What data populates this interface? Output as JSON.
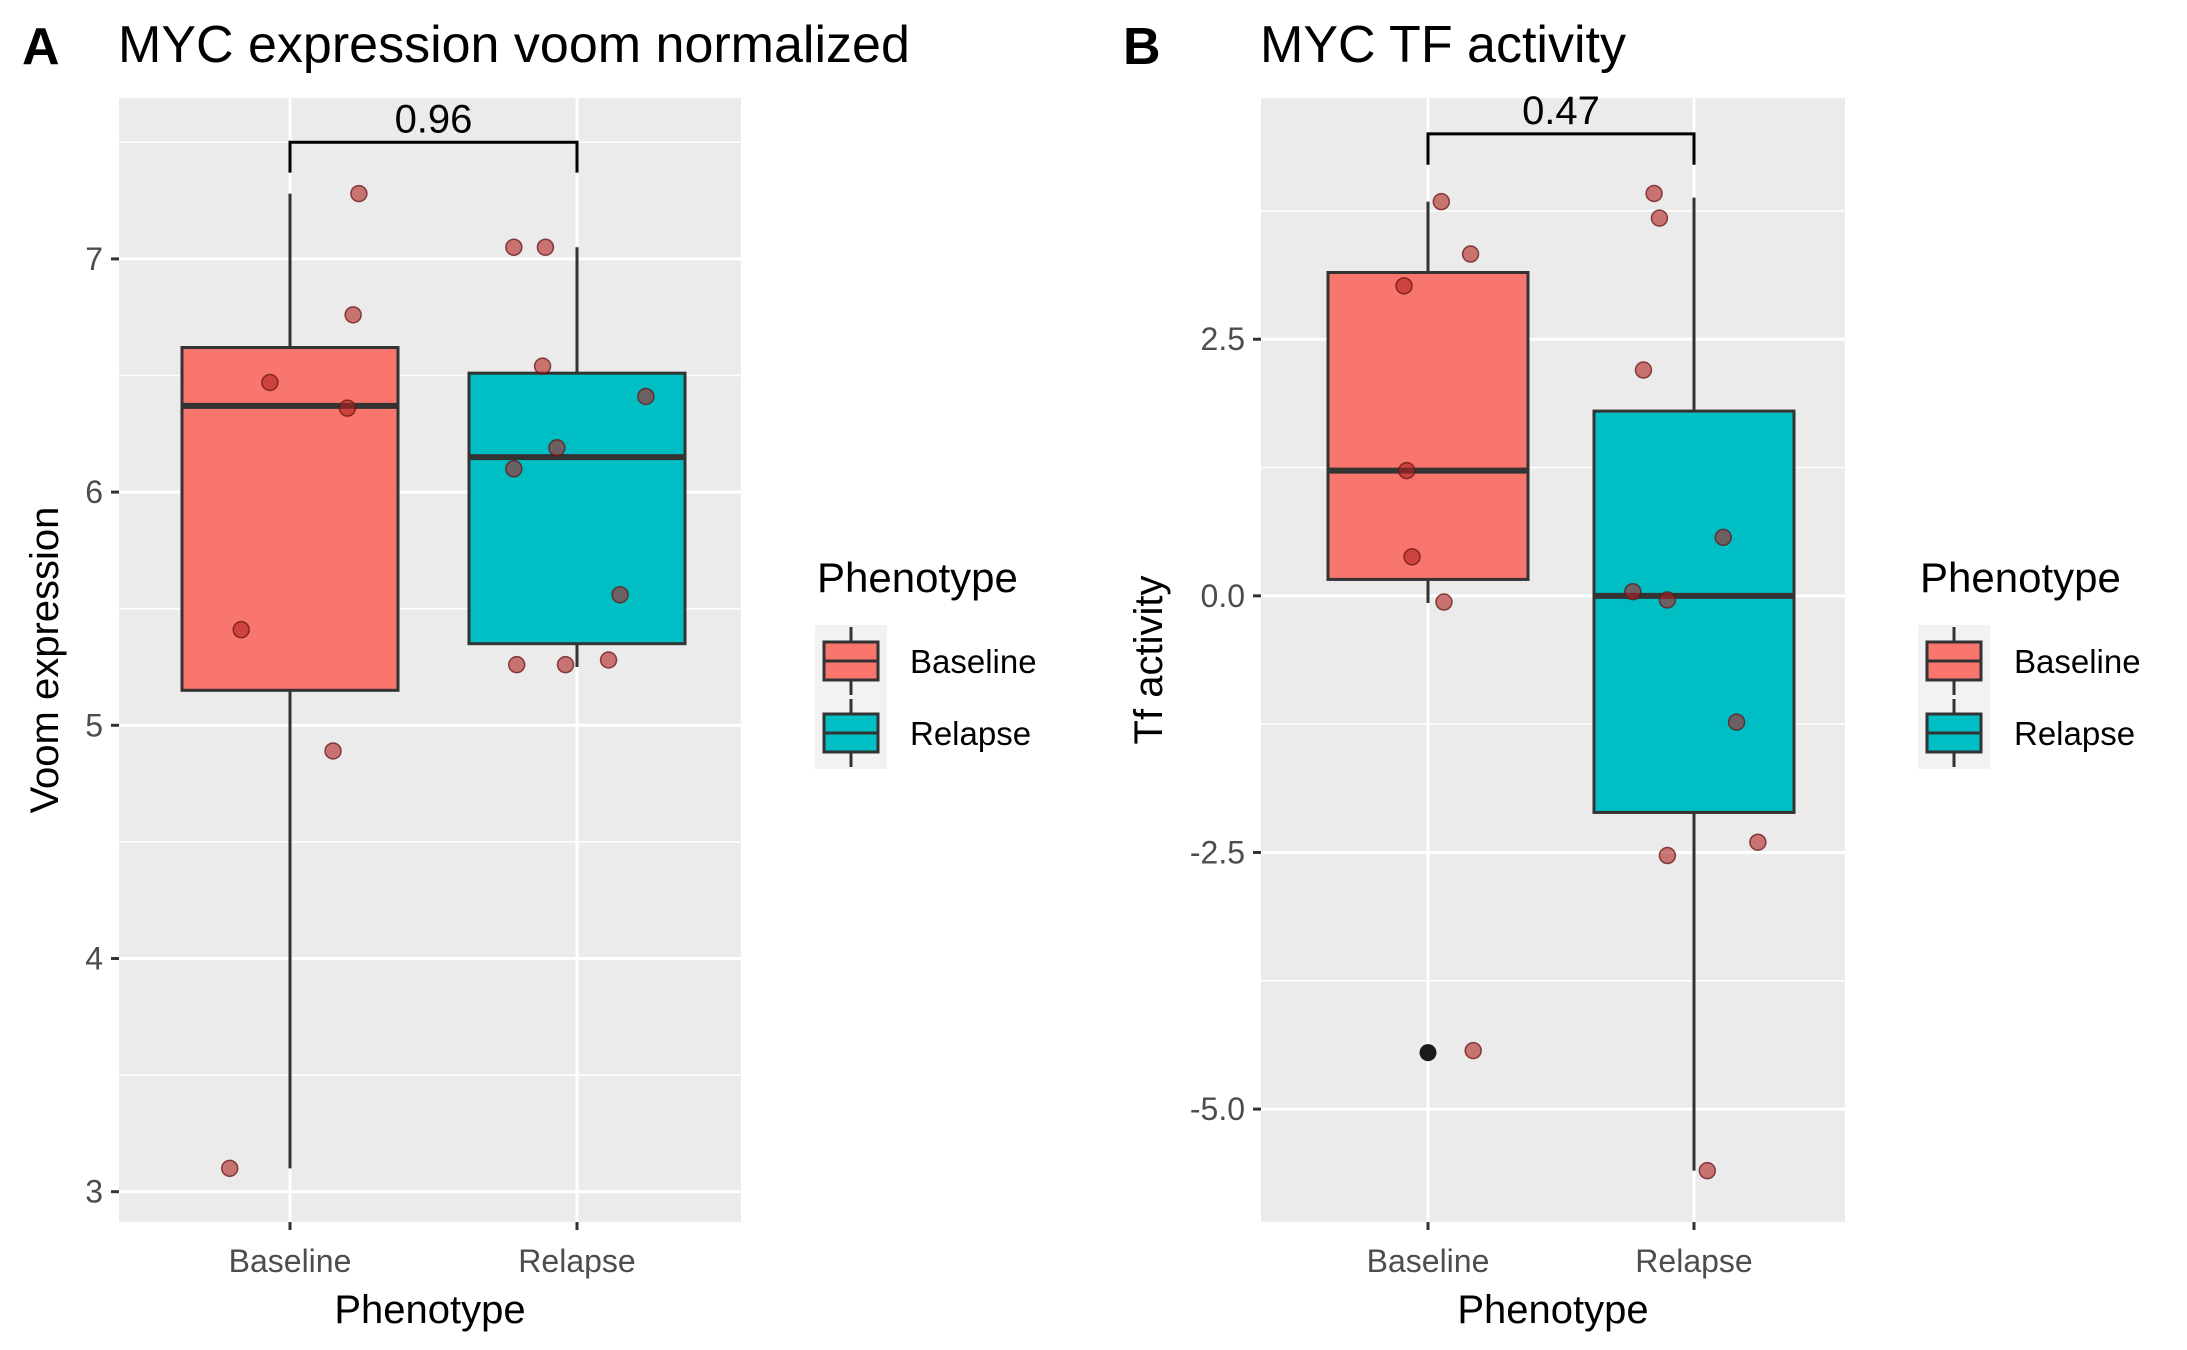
{
  "chart_data": [
    {
      "type": "box",
      "panel_letter": "A",
      "title": "MYC expression voom normalized",
      "xlabel": "Phenotype",
      "ylabel": "Voom expression",
      "categories": [
        "Baseline",
        "Relapse"
      ],
      "ylim": [
        2.87,
        7.69
      ],
      "yticks": [
        3,
        4,
        5,
        6,
        7
      ],
      "ytick_labels": [
        "3",
        "4",
        "5",
        "6",
        "7"
      ],
      "grid": true,
      "boxes": [
        {
          "category": "Baseline",
          "q1": 5.15,
          "median": 6.37,
          "q3": 6.62,
          "whisker_low": 3.1,
          "whisker_high": 7.28,
          "color": "#F8766D"
        },
        {
          "category": "Relapse",
          "q1": 5.35,
          "median": 6.15,
          "q3": 6.51,
          "whisker_low": 5.25,
          "whisker_high": 7.05,
          "color": "#00BFC4"
        }
      ],
      "points": [
        {
          "category": "Baseline",
          "jitter": 0.24,
          "value": 7.28
        },
        {
          "category": "Baseline",
          "jitter": 0.22,
          "value": 6.76
        },
        {
          "category": "Baseline",
          "jitter": -0.07,
          "value": 6.47
        },
        {
          "category": "Baseline",
          "jitter": 0.2,
          "value": 6.36
        },
        {
          "category": "Baseline",
          "jitter": -0.17,
          "value": 5.41
        },
        {
          "category": "Baseline",
          "jitter": 0.15,
          "value": 4.89
        },
        {
          "category": "Baseline",
          "jitter": -0.21,
          "value": 3.1
        },
        {
          "category": "Relapse",
          "jitter": -0.22,
          "value": 7.05
        },
        {
          "category": "Relapse",
          "jitter": -0.11,
          "value": 7.05
        },
        {
          "category": "Relapse",
          "jitter": -0.12,
          "value": 6.54
        },
        {
          "category": "Relapse",
          "jitter": 0.24,
          "value": 6.41
        },
        {
          "category": "Relapse",
          "jitter": -0.07,
          "value": 6.19
        },
        {
          "category": "Relapse",
          "jitter": -0.22,
          "value": 6.1
        },
        {
          "category": "Relapse",
          "jitter": 0.15,
          "value": 5.56
        },
        {
          "category": "Relapse",
          "jitter": 0.11,
          "value": 5.28
        },
        {
          "category": "Relapse",
          "jitter": -0.21,
          "value": 5.26
        },
        {
          "category": "Relapse",
          "jitter": -0.04,
          "value": 5.26
        }
      ],
      "outliers": [],
      "comparison": {
        "label": "0.96",
        "bracket_y": 7.5,
        "bracket_drop": 7.37
      },
      "legend": {
        "title": "Phenotype",
        "entries": [
          "Baseline",
          "Relapse"
        ],
        "placement": "right"
      }
    },
    {
      "type": "box",
      "panel_letter": "B",
      "title": "MYC TF activity",
      "xlabel": "Phenotype",
      "ylabel": "Tf activity",
      "categories": [
        "Baseline",
        "Relapse"
      ],
      "ylim": [
        -6.1,
        4.85
      ],
      "yticks": [
        -5.0,
        -2.5,
        0.0,
        2.5
      ],
      "ytick_labels": [
        "-5.0",
        "-2.5",
        "0.0",
        "2.5"
      ],
      "grid": true,
      "boxes": [
        {
          "category": "Baseline",
          "q1": 0.16,
          "median": 1.22,
          "q3": 3.15,
          "whisker_low": -0.07,
          "whisker_high": 3.84,
          "color": "#F8766D"
        },
        {
          "category": "Relapse",
          "q1": -2.11,
          "median": 0.0,
          "q3": 1.8,
          "whisker_low": -5.6,
          "whisker_high": 3.88,
          "color": "#00BFC4"
        }
      ],
      "points": [
        {
          "category": "Baseline",
          "jitter": 0.05,
          "value": 3.84
        },
        {
          "category": "Baseline",
          "jitter": 0.16,
          "value": 3.33
        },
        {
          "category": "Baseline",
          "jitter": -0.09,
          "value": 3.02
        },
        {
          "category": "Baseline",
          "jitter": -0.08,
          "value": 1.22
        },
        {
          "category": "Baseline",
          "jitter": -0.06,
          "value": 0.38
        },
        {
          "category": "Baseline",
          "jitter": 0.06,
          "value": -0.06
        },
        {
          "category": "Baseline",
          "jitter": 0.17,
          "value": -4.43
        },
        {
          "category": "Relapse",
          "jitter": -0.15,
          "value": 3.92
        },
        {
          "category": "Relapse",
          "jitter": -0.13,
          "value": 3.68
        },
        {
          "category": "Relapse",
          "jitter": -0.19,
          "value": 2.2
        },
        {
          "category": "Relapse",
          "jitter": 0.11,
          "value": 0.57
        },
        {
          "category": "Relapse",
          "jitter": -0.23,
          "value": 0.04
        },
        {
          "category": "Relapse",
          "jitter": -0.1,
          "value": -0.04
        },
        {
          "category": "Relapse",
          "jitter": 0.16,
          "value": -1.23
        },
        {
          "category": "Relapse",
          "jitter": 0.24,
          "value": -2.4
        },
        {
          "category": "Relapse",
          "jitter": -0.1,
          "value": -2.53
        },
        {
          "category": "Relapse",
          "jitter": 0.05,
          "value": -5.6
        }
      ],
      "outliers": [
        {
          "category": "Baseline",
          "value": -4.45
        }
      ],
      "comparison": {
        "label": "0.47",
        "bracket_y": 4.5,
        "bracket_drop": 4.2
      },
      "legend": {
        "title": "Phenotype",
        "entries": [
          "Baseline",
          "Relapse"
        ],
        "placement": "right"
      }
    }
  ]
}
